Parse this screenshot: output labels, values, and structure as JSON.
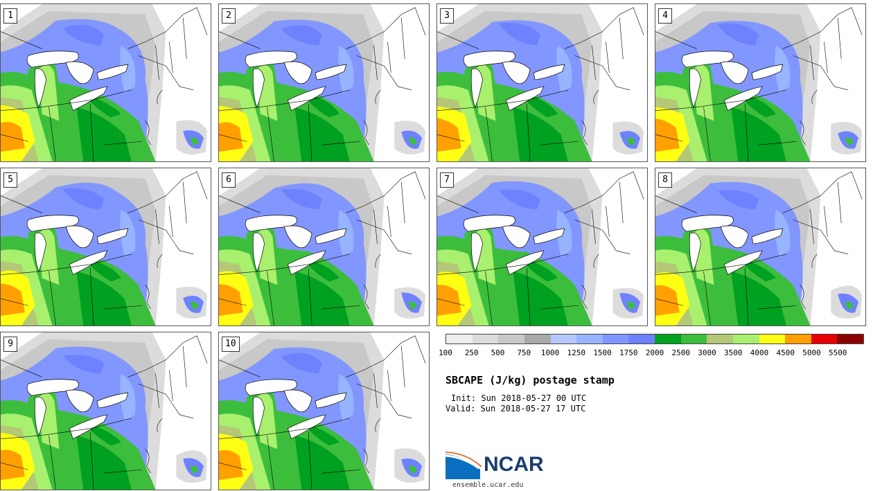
{
  "panels": [
    {
      "number": "1"
    },
    {
      "number": "2"
    },
    {
      "number": "3"
    },
    {
      "number": "4"
    },
    {
      "number": "5"
    },
    {
      "number": "6"
    },
    {
      "number": "7"
    },
    {
      "number": "8"
    },
    {
      "number": "9"
    },
    {
      "number": "10"
    }
  ],
  "colorbar": {
    "colors": [
      "#eeeeee",
      "#dcdcdc",
      "#c8c8c8",
      "#a8a8a8",
      "#b4c8ff",
      "#96b4ff",
      "#8296ff",
      "#6e82ff",
      "#00a020",
      "#3cbe3c",
      "#b4c878",
      "#a8f06e",
      "#ffff14",
      "#ffa000",
      "#e60000",
      "#8c0000"
    ],
    "labels": [
      "100",
      "250",
      "500",
      "750",
      "1000",
      "1250",
      "1500",
      "1750",
      "2000",
      "2500",
      "3000",
      "3500",
      "4000",
      "4500",
      "5000",
      "5500"
    ]
  },
  "title": "SBCAPE (J/kg) postage stamp",
  "init": "Init: Sun 2018-05-27 00 UTC",
  "valid": "Valid: Sun 2018-05-27 17 UTC",
  "logo": {
    "text": "NCAR"
  },
  "site": "ensemble.ucar.edu"
}
